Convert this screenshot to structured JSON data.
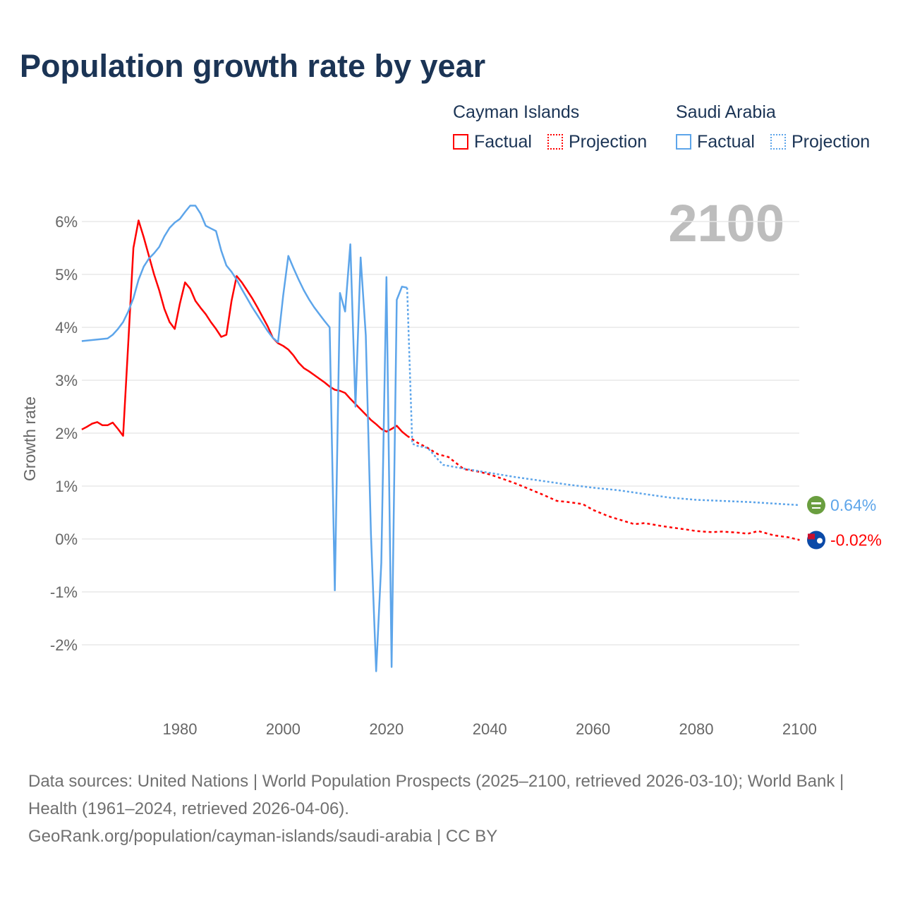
{
  "title": "Population growth rate by year",
  "legend": {
    "groups": [
      {
        "name": "Cayman Islands",
        "factual": "Factual",
        "projection": "Projection",
        "color": "#ff0000"
      },
      {
        "name": "Saudi Arabia",
        "factual": "Factual",
        "projection": "Projection",
        "color": "#5da5ea"
      }
    ]
  },
  "year_display": "2100",
  "footer": {
    "sources": "Data sources: United Nations | World Population Prospects (2025–2100, retrieved 2026-03-10); World Bank | Health (1961–2024, retrieved 2026-04-06).",
    "link": "GeoRank.org/population/cayman-islands/saudi-arabia | CC BY"
  },
  "chart_data": {
    "type": "line",
    "title": "Population growth rate by year",
    "xlabel": "",
    "ylabel": "Growth rate",
    "xlim": [
      1961,
      2100
    ],
    "ylim": [
      -3,
      6.6
    ],
    "x_ticks": [
      1980,
      2000,
      2020,
      2040,
      2060,
      2080,
      2100
    ],
    "y_ticks": [
      -2,
      -1,
      0,
      1,
      2,
      3,
      4,
      5,
      6
    ],
    "y_tick_labels": [
      "-2%",
      "-1%",
      "0%",
      "1%",
      "2%",
      "3%",
      "4%",
      "5%",
      "6%"
    ],
    "grid": true,
    "series": [
      {
        "name": "Cayman Islands",
        "color": "#ff0000",
        "end_label": "-0.02%",
        "flag": "cayman-islands-flag",
        "factual": [
          [
            1961,
            2.07
          ],
          [
            1962,
            2.12
          ],
          [
            1963,
            2.18
          ],
          [
            1964,
            2.21
          ],
          [
            1965,
            2.15
          ],
          [
            1966,
            2.15
          ],
          [
            1967,
            2.2
          ],
          [
            1968,
            2.08
          ],
          [
            1969,
            1.95
          ],
          [
            1970,
            3.7
          ],
          [
            1971,
            5.5
          ],
          [
            1972,
            6.02
          ],
          [
            1973,
            5.7
          ],
          [
            1974,
            5.35
          ],
          [
            1975,
            5.0
          ],
          [
            1976,
            4.7
          ],
          [
            1977,
            4.35
          ],
          [
            1978,
            4.1
          ],
          [
            1979,
            3.97
          ],
          [
            1980,
            4.45
          ],
          [
            1981,
            4.85
          ],
          [
            1982,
            4.73
          ],
          [
            1983,
            4.5
          ],
          [
            1984,
            4.37
          ],
          [
            1985,
            4.25
          ],
          [
            1986,
            4.1
          ],
          [
            1987,
            3.97
          ],
          [
            1988,
            3.82
          ],
          [
            1989,
            3.86
          ],
          [
            1990,
            4.5
          ],
          [
            1991,
            4.97
          ],
          [
            1992,
            4.85
          ],
          [
            1993,
            4.7
          ],
          [
            1994,
            4.55
          ],
          [
            1995,
            4.38
          ],
          [
            1996,
            4.2
          ],
          [
            1997,
            4.02
          ],
          [
            1998,
            3.8
          ],
          [
            1999,
            3.7
          ],
          [
            2000,
            3.65
          ],
          [
            2001,
            3.58
          ],
          [
            2002,
            3.47
          ],
          [
            2003,
            3.33
          ],
          [
            2004,
            3.23
          ],
          [
            2005,
            3.17
          ],
          [
            2006,
            3.1
          ],
          [
            2007,
            3.03
          ],
          [
            2008,
            2.96
          ],
          [
            2009,
            2.88
          ],
          [
            2010,
            2.82
          ],
          [
            2011,
            2.8
          ],
          [
            2012,
            2.76
          ],
          [
            2013,
            2.65
          ],
          [
            2014,
            2.55
          ],
          [
            2015,
            2.45
          ],
          [
            2016,
            2.35
          ],
          [
            2017,
            2.25
          ],
          [
            2018,
            2.17
          ],
          [
            2019,
            2.08
          ],
          [
            2020,
            2.03
          ],
          [
            2021,
            2.08
          ],
          [
            2022,
            2.14
          ],
          [
            2023,
            2.03
          ],
          [
            2024,
            1.95
          ]
        ],
        "projection": [
          [
            2024,
            1.95
          ],
          [
            2026,
            1.82
          ],
          [
            2028,
            1.72
          ],
          [
            2030,
            1.6
          ],
          [
            2032,
            1.55
          ],
          [
            2035,
            1.32
          ],
          [
            2038,
            1.27
          ],
          [
            2040,
            1.22
          ],
          [
            2043,
            1.12
          ],
          [
            2045,
            1.05
          ],
          [
            2048,
            0.93
          ],
          [
            2050,
            0.85
          ],
          [
            2053,
            0.72
          ],
          [
            2055,
            0.7
          ],
          [
            2058,
            0.66
          ],
          [
            2060,
            0.55
          ],
          [
            2063,
            0.43
          ],
          [
            2065,
            0.37
          ],
          [
            2068,
            0.28
          ],
          [
            2070,
            0.3
          ],
          [
            2073,
            0.25
          ],
          [
            2075,
            0.22
          ],
          [
            2078,
            0.18
          ],
          [
            2080,
            0.15
          ],
          [
            2083,
            0.13
          ],
          [
            2085,
            0.14
          ],
          [
            2088,
            0.12
          ],
          [
            2090,
            0.1
          ],
          [
            2092,
            0.15
          ],
          [
            2095,
            0.07
          ],
          [
            2098,
            0.03
          ],
          [
            2100,
            -0.02
          ]
        ]
      },
      {
        "name": "Saudi Arabia",
        "color": "#5da5ea",
        "end_label": "0.64%",
        "flag": "saudi-arabia-flag",
        "factual": [
          [
            1961,
            3.74
          ],
          [
            1962,
            3.75
          ],
          [
            1963,
            3.76
          ],
          [
            1964,
            3.77
          ],
          [
            1965,
            3.78
          ],
          [
            1966,
            3.79
          ],
          [
            1967,
            3.86
          ],
          [
            1968,
            3.97
          ],
          [
            1969,
            4.1
          ],
          [
            1970,
            4.3
          ],
          [
            1971,
            4.55
          ],
          [
            1972,
            4.9
          ],
          [
            1973,
            5.15
          ],
          [
            1974,
            5.3
          ],
          [
            1975,
            5.4
          ],
          [
            1976,
            5.52
          ],
          [
            1977,
            5.72
          ],
          [
            1978,
            5.88
          ],
          [
            1979,
            5.98
          ],
          [
            1980,
            6.05
          ],
          [
            1981,
            6.18
          ],
          [
            1982,
            6.3
          ],
          [
            1983,
            6.3
          ],
          [
            1984,
            6.15
          ],
          [
            1985,
            5.92
          ],
          [
            1986,
            5.87
          ],
          [
            1987,
            5.82
          ],
          [
            1988,
            5.45
          ],
          [
            1989,
            5.17
          ],
          [
            1990,
            5.05
          ],
          [
            1991,
            4.9
          ],
          [
            1992,
            4.72
          ],
          [
            1993,
            4.55
          ],
          [
            1994,
            4.38
          ],
          [
            1995,
            4.23
          ],
          [
            1996,
            4.08
          ],
          [
            1997,
            3.93
          ],
          [
            1998,
            3.8
          ],
          [
            1999,
            3.72
          ],
          [
            2000,
            4.6
          ],
          [
            2001,
            5.35
          ],
          [
            2002,
            5.12
          ],
          [
            2003,
            4.9
          ],
          [
            2004,
            4.7
          ],
          [
            2005,
            4.53
          ],
          [
            2006,
            4.38
          ],
          [
            2007,
            4.25
          ],
          [
            2008,
            4.12
          ],
          [
            2009,
            4.0
          ],
          [
            2010,
            -0.97
          ],
          [
            2011,
            4.65
          ],
          [
            2012,
            4.3
          ],
          [
            2013,
            5.57
          ],
          [
            2014,
            2.5
          ],
          [
            2015,
            5.32
          ],
          [
            2016,
            3.85
          ],
          [
            2017,
            0.1
          ],
          [
            2018,
            -2.5
          ],
          [
            2019,
            -0.45
          ],
          [
            2020,
            4.95
          ],
          [
            2021,
            -2.42
          ],
          [
            2022,
            4.52
          ],
          [
            2023,
            4.77
          ],
          [
            2024,
            4.75
          ]
        ],
        "projection": [
          [
            2024,
            4.75
          ],
          [
            2025,
            1.8
          ],
          [
            2026,
            1.76
          ],
          [
            2028,
            1.72
          ],
          [
            2030,
            1.5
          ],
          [
            2031,
            1.4
          ],
          [
            2035,
            1.33
          ],
          [
            2040,
            1.25
          ],
          [
            2045,
            1.17
          ],
          [
            2050,
            1.1
          ],
          [
            2055,
            1.03
          ],
          [
            2060,
            0.97
          ],
          [
            2065,
            0.92
          ],
          [
            2070,
            0.85
          ],
          [
            2075,
            0.78
          ],
          [
            2080,
            0.74
          ],
          [
            2085,
            0.72
          ],
          [
            2090,
            0.7
          ],
          [
            2095,
            0.67
          ],
          [
            2100,
            0.64
          ]
        ]
      }
    ]
  }
}
